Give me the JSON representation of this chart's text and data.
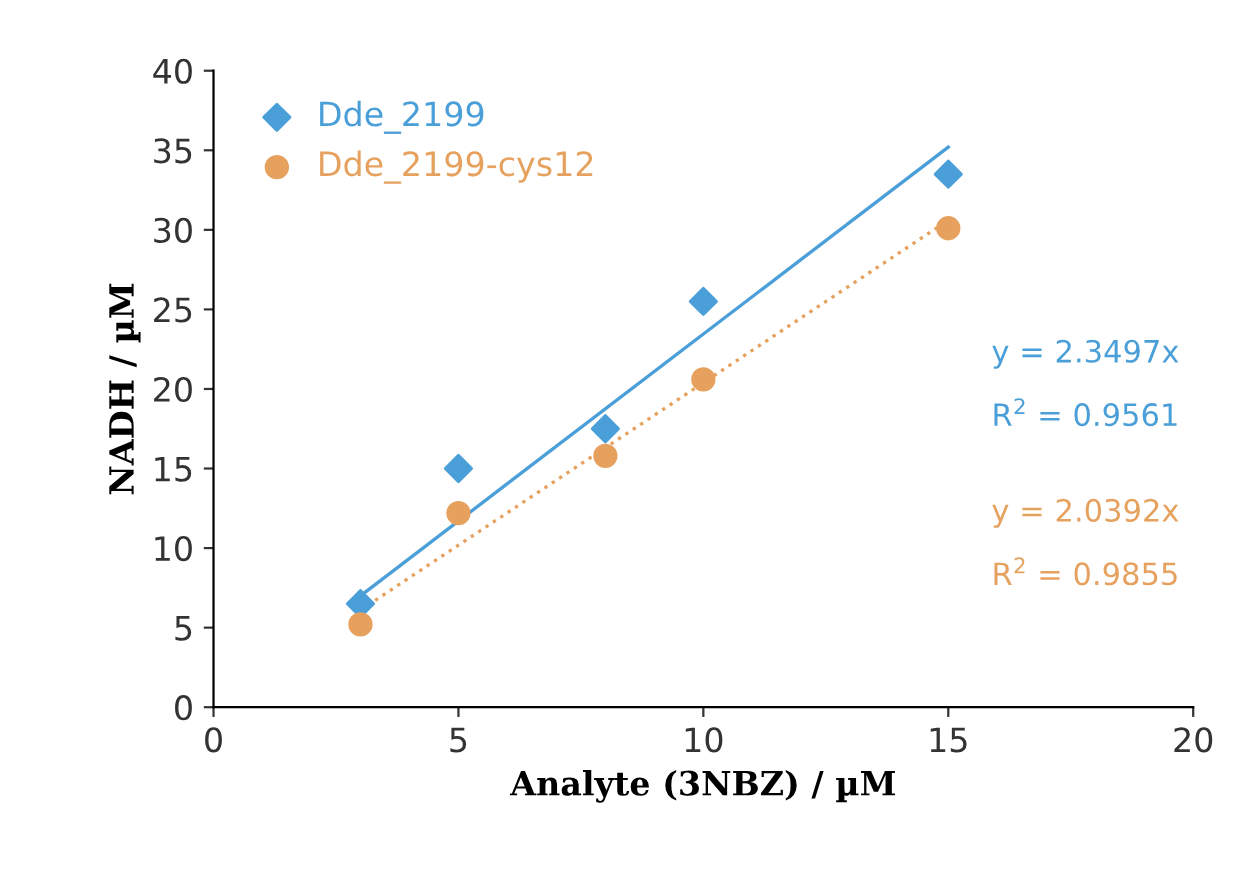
{
  "chart_data": {
    "type": "scatter",
    "xlabel": "Analyte (3NBZ) / µM",
    "ylabel": "NADH / µM",
    "xlim": [
      0,
      20
    ],
    "xticks": [
      0,
      5,
      10,
      15,
      20
    ],
    "ylim": [
      0,
      40
    ],
    "yticks": [
      0,
      5,
      10,
      15,
      20,
      25,
      30,
      35,
      40
    ],
    "grid": false,
    "legend": "top left",
    "series": [
      {
        "name": "Dde_2199",
        "color": "#4a9fd8",
        "marker": "diamond",
        "x": [
          3,
          5,
          8,
          10,
          15
        ],
        "values": [
          6.5,
          15,
          17.5,
          25.5,
          33.5
        ]
      },
      {
        "name": "Dde_2199-cys12",
        "color": "#e6a15e",
        "marker": "circle",
        "x": [
          3,
          5,
          8,
          10,
          15
        ],
        "values": [
          5.2,
          12.2,
          15.8,
          20.6,
          30.1
        ]
      },
      {
        "type": "line",
        "color": "#4a9fd8",
        "line_style": "solid",
        "marker": "none",
        "x": [
          3,
          15
        ],
        "values": [
          7,
          35.2
        ]
      },
      {
        "type": "line",
        "color": "#e6a15e",
        "line_style": "dotted",
        "marker": "none",
        "x": [
          3,
          15
        ],
        "values": [
          6.1,
          30.6
        ]
      }
    ],
    "annotations": [
      "y = 2.3497x",
      "R$^{2}$ = 0.9561",
      "y = 2.0392x",
      "R$^{2}$ = 0.9855"
    ]
  }
}
